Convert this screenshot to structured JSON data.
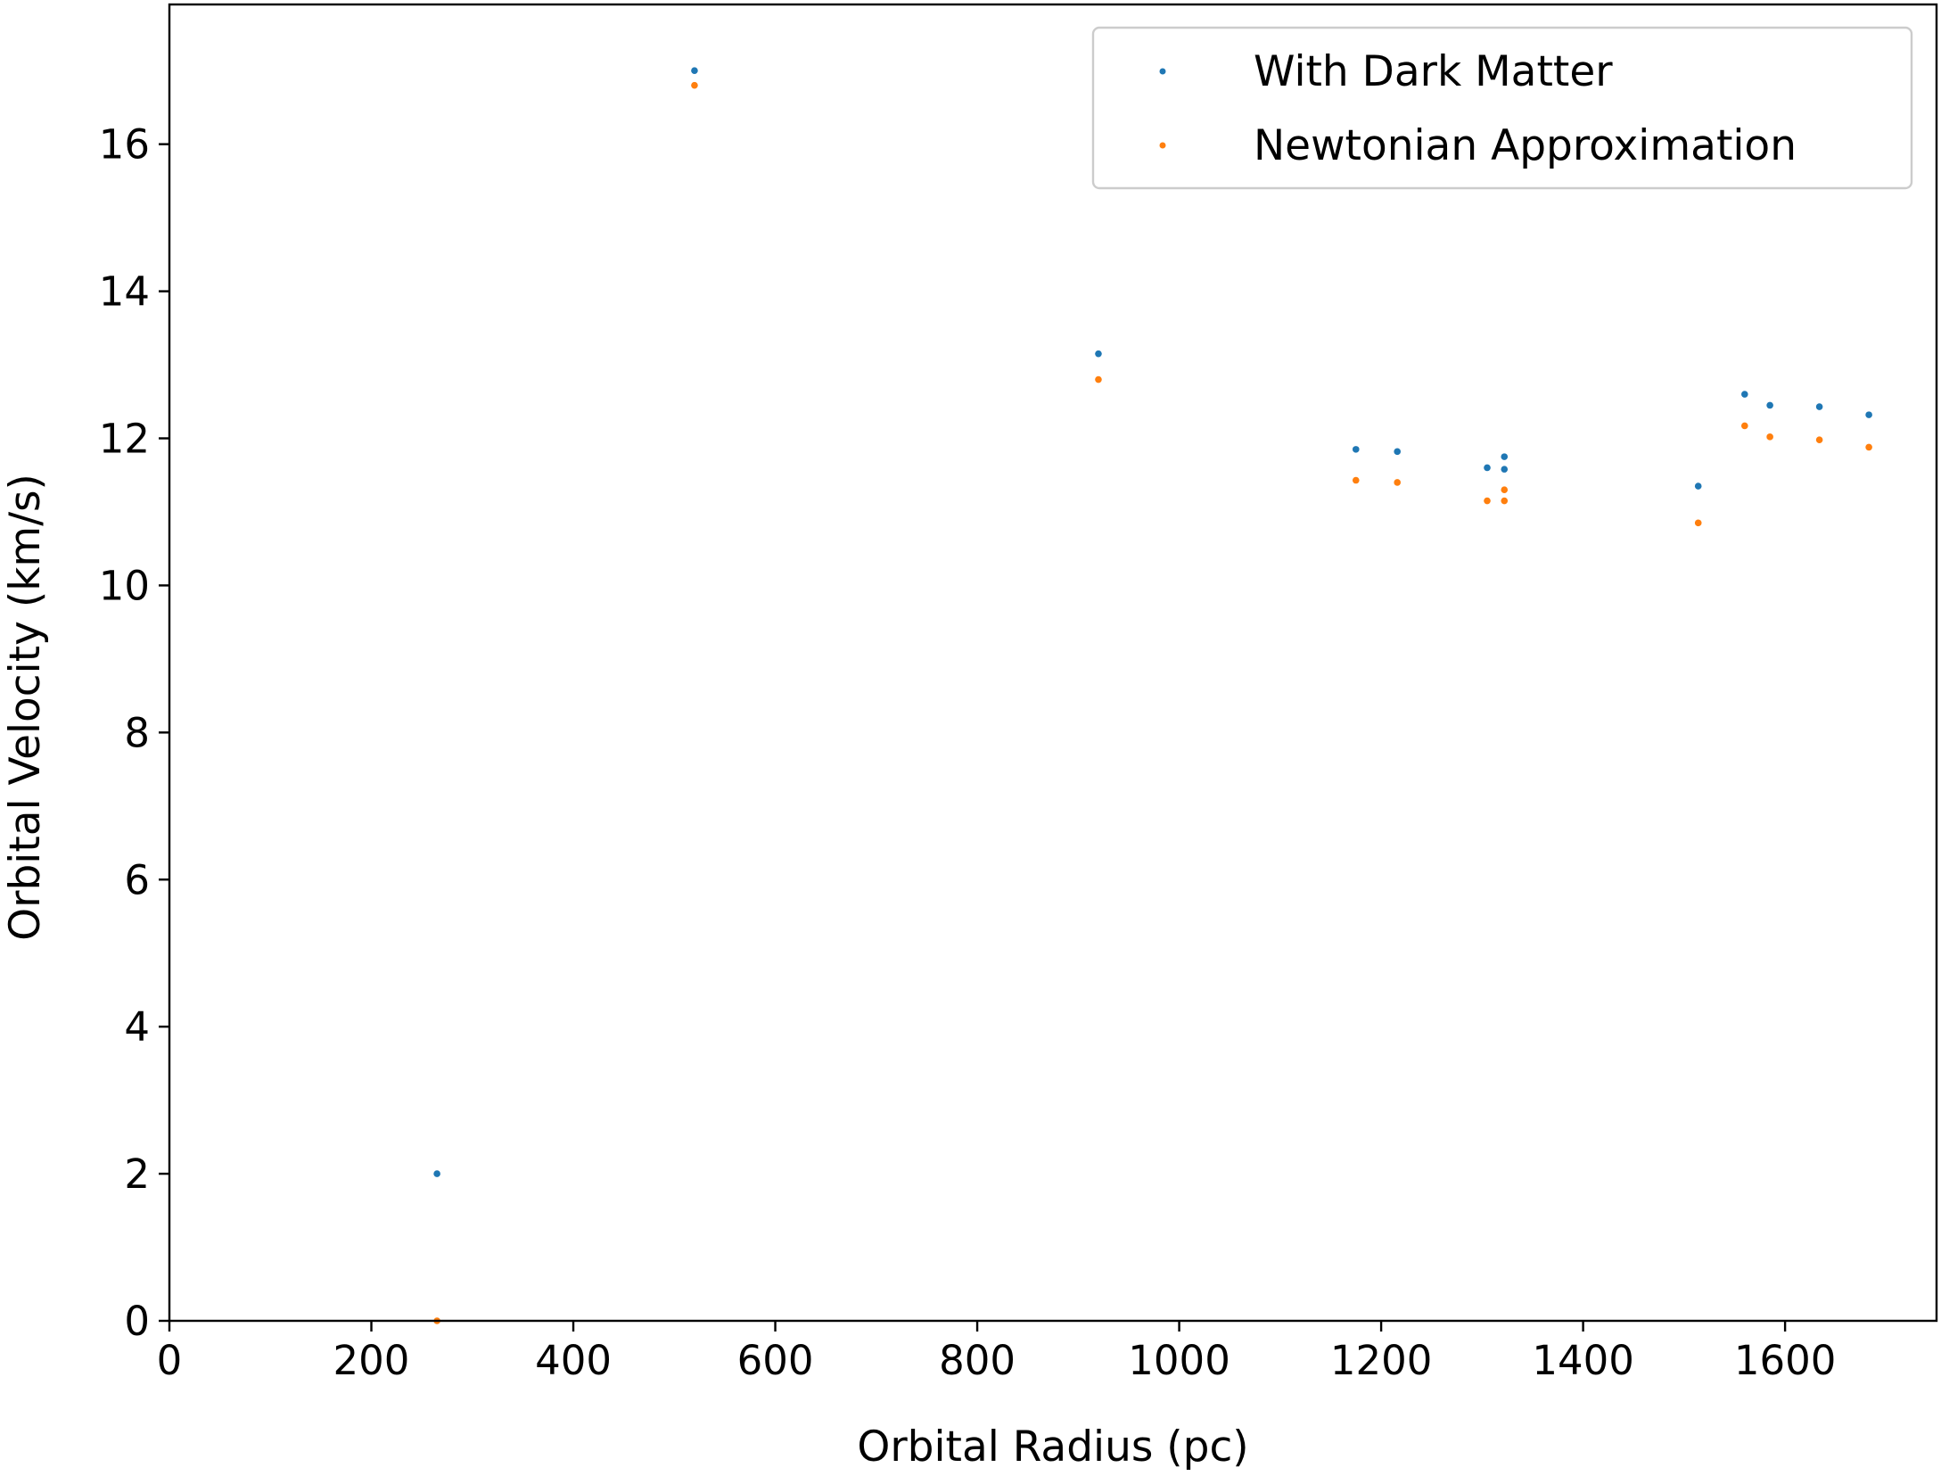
{
  "chart_data": {
    "type": "scatter",
    "title": "",
    "xlabel": "Orbital Radius (pc)",
    "ylabel": "Orbital Velocity (km/s)",
    "xlim": [
      0,
      1750
    ],
    "ylim": [
      0,
      17.9
    ],
    "xticks": [
      0,
      200,
      400,
      600,
      800,
      1000,
      1200,
      1400,
      1600
    ],
    "yticks": [
      0,
      2,
      4,
      6,
      8,
      10,
      12,
      14,
      16
    ],
    "grid": false,
    "legend_position": "top-right",
    "series": [
      {
        "name": "With Dark Matter",
        "color": "#1f77b4",
        "x": [
          265,
          520,
          920,
          1175,
          1216,
          1305,
          1322,
          1322,
          1514,
          1560,
          1585,
          1634,
          1683
        ],
        "y": [
          2.0,
          17.0,
          13.15,
          11.85,
          11.82,
          11.6,
          11.75,
          11.58,
          11.35,
          12.6,
          12.45,
          12.43,
          12.32
        ]
      },
      {
        "name": "Newtonian Approximation",
        "color": "#ff7f0e",
        "x": [
          265,
          520,
          920,
          1175,
          1216,
          1305,
          1322,
          1322,
          1514,
          1560,
          1585,
          1634,
          1683
        ],
        "y": [
          0.0,
          16.8,
          12.8,
          11.43,
          11.4,
          11.15,
          11.3,
          11.15,
          10.85,
          12.17,
          12.02,
          11.98,
          11.88
        ]
      }
    ]
  }
}
